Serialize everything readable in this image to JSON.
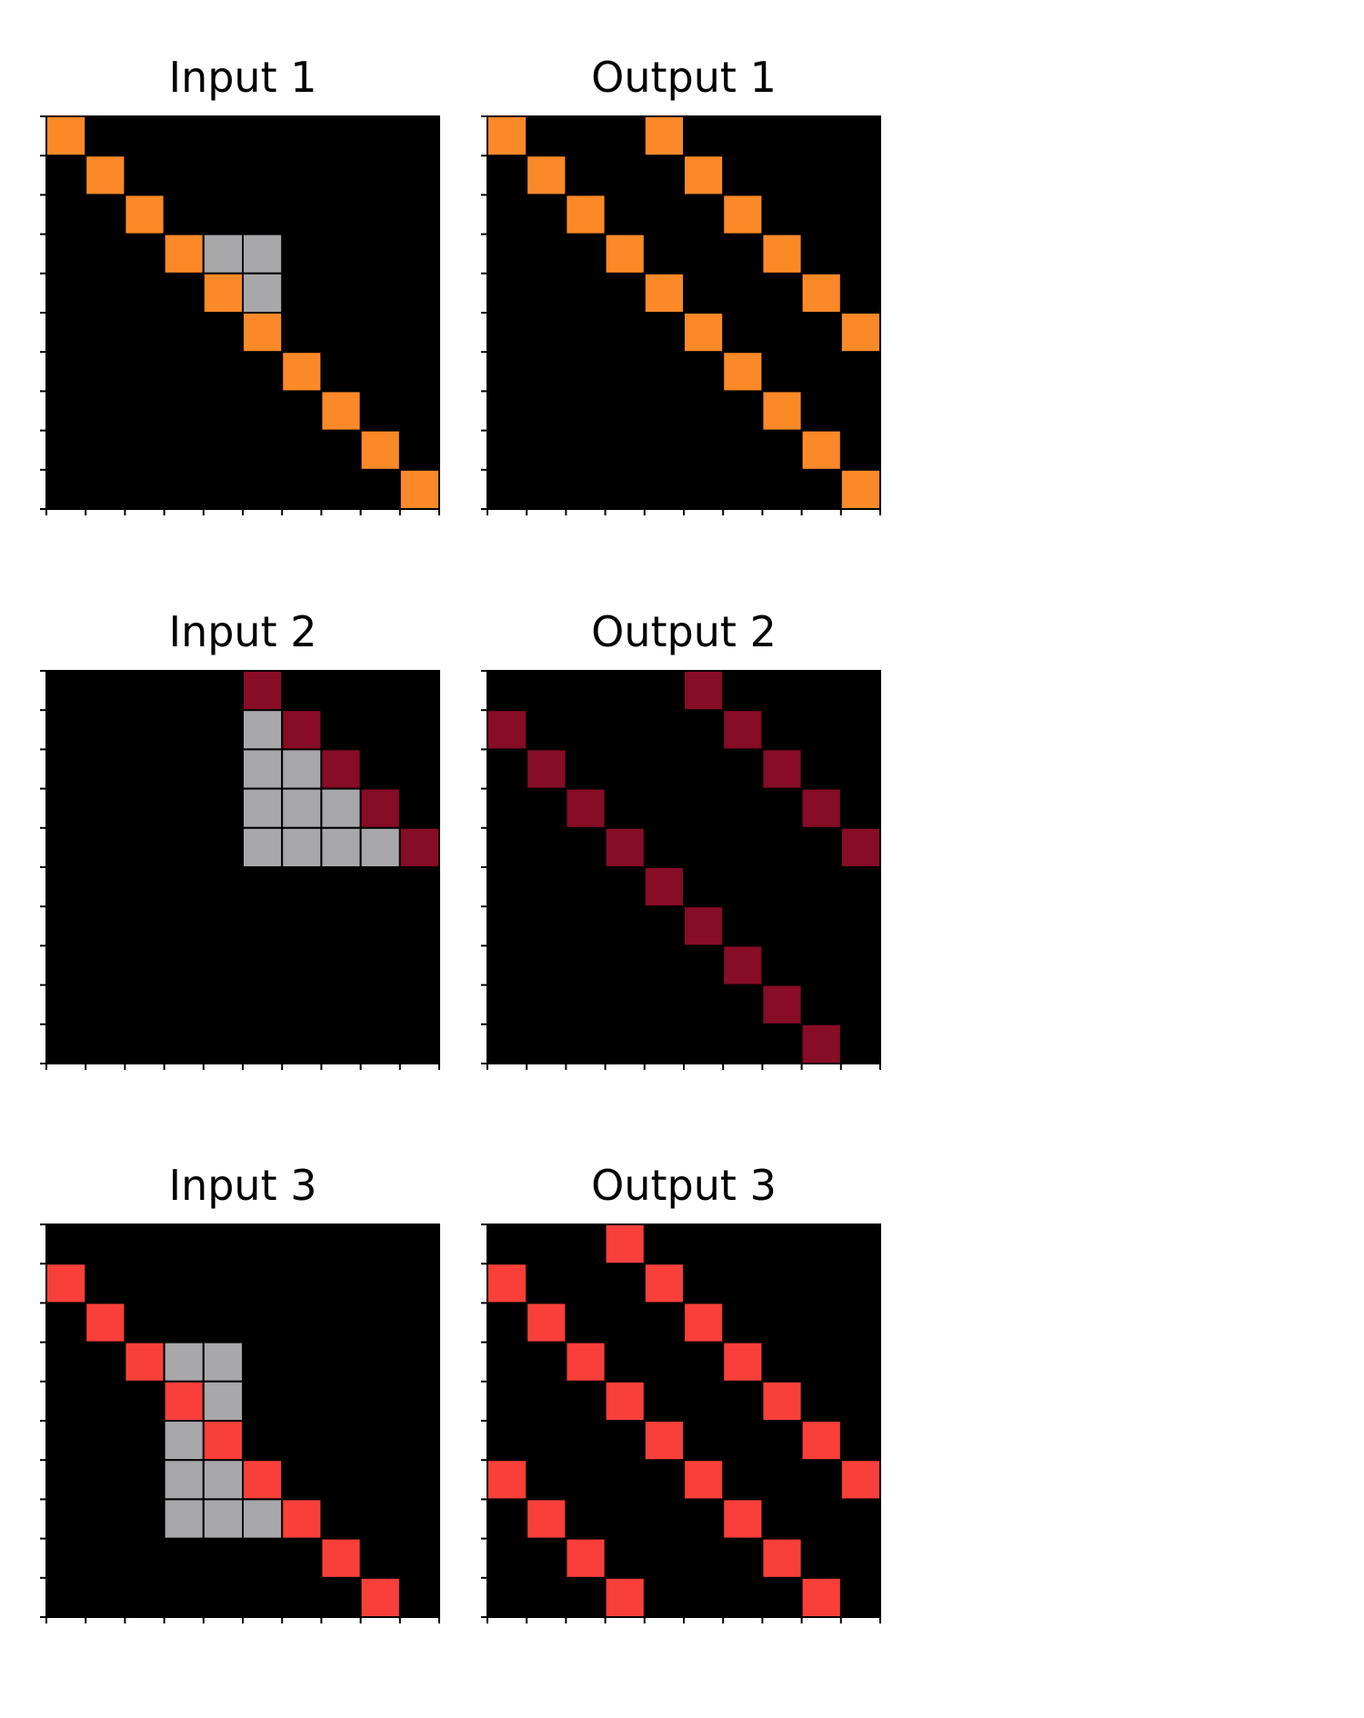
{
  "palette": {
    "0": "#000000",
    "2": "#f93f3a",
    "5": "#a8a7aa",
    "7": "#fb8927",
    "9": "#870c25"
  },
  "pairs": [
    {
      "input": {
        "title": "Input 1",
        "grid": [
          [
            7,
            0,
            0,
            0,
            0,
            0,
            0,
            0,
            0,
            0
          ],
          [
            0,
            7,
            0,
            0,
            0,
            0,
            0,
            0,
            0,
            0
          ],
          [
            0,
            0,
            7,
            0,
            0,
            0,
            0,
            0,
            0,
            0
          ],
          [
            0,
            0,
            0,
            7,
            5,
            5,
            0,
            0,
            0,
            0
          ],
          [
            0,
            0,
            0,
            0,
            7,
            5,
            0,
            0,
            0,
            0
          ],
          [
            0,
            0,
            0,
            0,
            0,
            7,
            0,
            0,
            0,
            0
          ],
          [
            0,
            0,
            0,
            0,
            0,
            0,
            7,
            0,
            0,
            0
          ],
          [
            0,
            0,
            0,
            0,
            0,
            0,
            0,
            7,
            0,
            0
          ],
          [
            0,
            0,
            0,
            0,
            0,
            0,
            0,
            0,
            7,
            0
          ],
          [
            0,
            0,
            0,
            0,
            0,
            0,
            0,
            0,
            0,
            7
          ]
        ]
      },
      "output": {
        "title": "Output 1",
        "grid": [
          [
            7,
            0,
            0,
            0,
            7,
            0,
            0,
            0,
            0,
            0
          ],
          [
            0,
            7,
            0,
            0,
            0,
            7,
            0,
            0,
            0,
            0
          ],
          [
            0,
            0,
            7,
            0,
            0,
            0,
            7,
            0,
            0,
            0
          ],
          [
            0,
            0,
            0,
            7,
            0,
            0,
            0,
            7,
            0,
            0
          ],
          [
            0,
            0,
            0,
            0,
            7,
            0,
            0,
            0,
            7,
            0
          ],
          [
            0,
            0,
            0,
            0,
            0,
            7,
            0,
            0,
            0,
            7
          ],
          [
            0,
            0,
            0,
            0,
            0,
            0,
            7,
            0,
            0,
            0
          ],
          [
            0,
            0,
            0,
            0,
            0,
            0,
            0,
            7,
            0,
            0
          ],
          [
            0,
            0,
            0,
            0,
            0,
            0,
            0,
            0,
            7,
            0
          ],
          [
            0,
            0,
            0,
            0,
            0,
            0,
            0,
            0,
            0,
            7
          ]
        ]
      }
    },
    {
      "input": {
        "title": "Input 2",
        "grid": [
          [
            0,
            0,
            0,
            0,
            0,
            9,
            0,
            0,
            0,
            0
          ],
          [
            0,
            0,
            0,
            0,
            0,
            5,
            9,
            0,
            0,
            0
          ],
          [
            0,
            0,
            0,
            0,
            0,
            5,
            5,
            9,
            0,
            0
          ],
          [
            0,
            0,
            0,
            0,
            0,
            5,
            5,
            5,
            9,
            0
          ],
          [
            0,
            0,
            0,
            0,
            0,
            5,
            5,
            5,
            5,
            9
          ],
          [
            0,
            0,
            0,
            0,
            0,
            0,
            0,
            0,
            0,
            0
          ],
          [
            0,
            0,
            0,
            0,
            0,
            0,
            0,
            0,
            0,
            0
          ],
          [
            0,
            0,
            0,
            0,
            0,
            0,
            0,
            0,
            0,
            0
          ],
          [
            0,
            0,
            0,
            0,
            0,
            0,
            0,
            0,
            0,
            0
          ],
          [
            0,
            0,
            0,
            0,
            0,
            0,
            0,
            0,
            0,
            0
          ]
        ]
      },
      "output": {
        "title": "Output 2",
        "grid": [
          [
            0,
            0,
            0,
            0,
            0,
            9,
            0,
            0,
            0,
            0
          ],
          [
            9,
            0,
            0,
            0,
            0,
            0,
            9,
            0,
            0,
            0
          ],
          [
            0,
            9,
            0,
            0,
            0,
            0,
            0,
            9,
            0,
            0
          ],
          [
            0,
            0,
            9,
            0,
            0,
            0,
            0,
            0,
            9,
            0
          ],
          [
            0,
            0,
            0,
            9,
            0,
            0,
            0,
            0,
            0,
            9
          ],
          [
            0,
            0,
            0,
            0,
            9,
            0,
            0,
            0,
            0,
            0
          ],
          [
            0,
            0,
            0,
            0,
            0,
            9,
            0,
            0,
            0,
            0
          ],
          [
            0,
            0,
            0,
            0,
            0,
            0,
            9,
            0,
            0,
            0
          ],
          [
            0,
            0,
            0,
            0,
            0,
            0,
            0,
            9,
            0,
            0
          ],
          [
            0,
            0,
            0,
            0,
            0,
            0,
            0,
            0,
            9,
            0
          ]
        ]
      }
    },
    {
      "input": {
        "title": "Input 3",
        "grid": [
          [
            0,
            0,
            0,
            0,
            0,
            0,
            0,
            0,
            0,
            0
          ],
          [
            2,
            0,
            0,
            0,
            0,
            0,
            0,
            0,
            0,
            0
          ],
          [
            0,
            2,
            0,
            0,
            0,
            0,
            0,
            0,
            0,
            0
          ],
          [
            0,
            0,
            2,
            5,
            5,
            0,
            0,
            0,
            0,
            0
          ],
          [
            0,
            0,
            0,
            2,
            5,
            0,
            0,
            0,
            0,
            0
          ],
          [
            0,
            0,
            0,
            5,
            2,
            0,
            0,
            0,
            0,
            0
          ],
          [
            0,
            0,
            0,
            5,
            5,
            2,
            0,
            0,
            0,
            0
          ],
          [
            0,
            0,
            0,
            5,
            5,
            5,
            2,
            0,
            0,
            0
          ],
          [
            0,
            0,
            0,
            0,
            0,
            0,
            0,
            2,
            0,
            0
          ],
          [
            0,
            0,
            0,
            0,
            0,
            0,
            0,
            0,
            2,
            0
          ]
        ]
      },
      "output": {
        "title": "Output 3",
        "grid": [
          [
            0,
            0,
            0,
            2,
            0,
            0,
            0,
            0,
            0,
            0
          ],
          [
            2,
            0,
            0,
            0,
            2,
            0,
            0,
            0,
            0,
            0
          ],
          [
            0,
            2,
            0,
            0,
            0,
            2,
            0,
            0,
            0,
            0
          ],
          [
            0,
            0,
            2,
            0,
            0,
            0,
            2,
            0,
            0,
            0
          ],
          [
            0,
            0,
            0,
            2,
            0,
            0,
            0,
            2,
            0,
            0
          ],
          [
            0,
            0,
            0,
            0,
            2,
            0,
            0,
            0,
            2,
            0
          ],
          [
            2,
            0,
            0,
            0,
            0,
            2,
            0,
            0,
            0,
            2
          ],
          [
            0,
            2,
            0,
            0,
            0,
            0,
            2,
            0,
            0,
            0
          ],
          [
            0,
            0,
            2,
            0,
            0,
            0,
            0,
            2,
            0,
            0
          ],
          [
            0,
            0,
            0,
            2,
            0,
            0,
            0,
            0,
            2,
            0
          ]
        ]
      }
    }
  ]
}
